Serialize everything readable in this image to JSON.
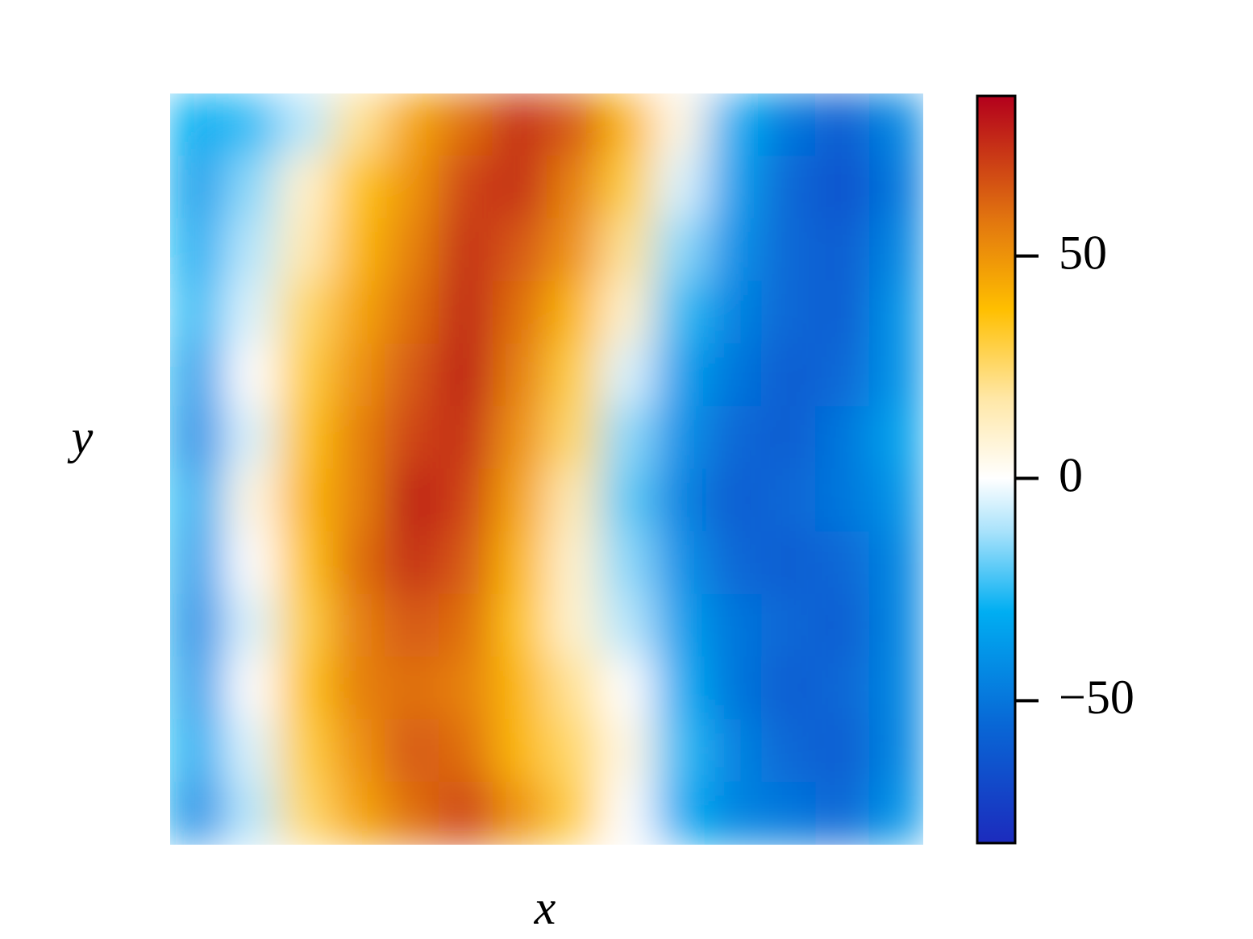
{
  "chart_data": {
    "type": "heatmap",
    "xlabel": "x",
    "ylabel": "y",
    "z": [
      [
        -30,
        -25,
        -10,
        20,
        45,
        60,
        75,
        65,
        40,
        5,
        -30,
        -50,
        -60,
        -45
      ],
      [
        -35,
        -15,
        10,
        35,
        50,
        70,
        75,
        55,
        30,
        -5,
        -35,
        -55,
        -65,
        -50
      ],
      [
        -30,
        -10,
        15,
        40,
        55,
        75,
        65,
        50,
        20,
        -15,
        -40,
        -55,
        -60,
        -45
      ],
      [
        -25,
        -5,
        25,
        45,
        60,
        78,
        60,
        40,
        10,
        -25,
        -45,
        -55,
        -60,
        -40
      ],
      [
        -35,
        0,
        30,
        50,
        65,
        80,
        55,
        30,
        -5,
        -35,
        -50,
        -60,
        -55,
        -40
      ],
      [
        -40,
        -5,
        35,
        55,
        70,
        75,
        50,
        25,
        -15,
        -40,
        -55,
        -60,
        -50,
        -35
      ],
      [
        -30,
        5,
        40,
        55,
        80,
        70,
        45,
        15,
        -20,
        -45,
        -60,
        -55,
        -50,
        -40
      ],
      [
        -35,
        0,
        35,
        60,
        75,
        65,
        40,
        10,
        -15,
        -40,
        -55,
        -60,
        -55,
        -45
      ],
      [
        -40,
        -5,
        30,
        55,
        65,
        60,
        35,
        10,
        -10,
        -35,
        -50,
        -55,
        -60,
        -45
      ],
      [
        -35,
        0,
        35,
        55,
        60,
        55,
        40,
        20,
        0,
        -30,
        -50,
        -60,
        -55,
        -45
      ],
      [
        -30,
        -5,
        30,
        50,
        65,
        60,
        40,
        25,
        5,
        -25,
        -45,
        -55,
        -60,
        -45
      ],
      [
        -40,
        -10,
        25,
        45,
        60,
        70,
        50,
        30,
        0,
        -30,
        -45,
        -50,
        -55,
        -40
      ]
    ],
    "clim": [
      -82,
      86
    ],
    "cticks": [
      {
        "value": -50,
        "label": "−50"
      },
      0,
      50
    ],
    "colormap": [
      {
        "value": -82,
        "color": "#1c2bbd"
      },
      {
        "value": -55,
        "color": "#0868d6"
      },
      {
        "value": -30,
        "color": "#00aef2"
      },
      {
        "value": -12,
        "color": "#a8e2fb"
      },
      {
        "value": 0,
        "color": "#ffffff"
      },
      {
        "value": 18,
        "color": "#ffe7a6"
      },
      {
        "value": 38,
        "color": "#ffbf00"
      },
      {
        "value": 58,
        "color": "#e2760f"
      },
      {
        "value": 86,
        "color": "#b3001c"
      }
    ]
  }
}
